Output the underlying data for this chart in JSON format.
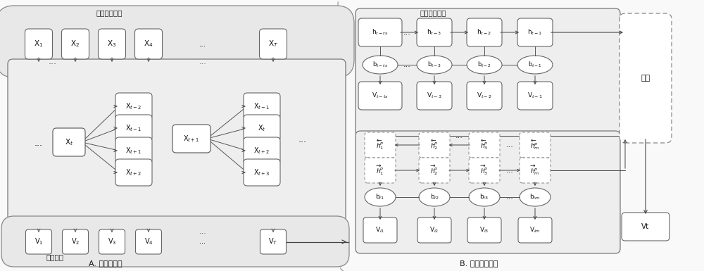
{
  "bg_color": "#ffffff",
  "panel_A_label": "A. 神经项嵌入",
  "panel_B_label": "B. 辨别行为学习",
  "seq_label": "相互作用序列",
  "session_label": "会话行为学习",
  "device_label": "设备向量",
  "predict_label": "预测",
  "seq_items_labels": [
    "X$_1$",
    "X$_2$",
    "X$_3$",
    "X$_4$",
    "...",
    "X$_T$"
  ],
  "v_items_A_labels": [
    "V$_1$",
    "V$_2$",
    "V$_3$",
    "V$_4$",
    "...",
    "V$_T$"
  ],
  "xt_label": "X$_t$",
  "xt1_label": "X$_{t+1}$",
  "ctx_left_labels": [
    "X$_{t-2}$",
    "X$_{t-1}$",
    "X$_{t+1}$",
    "X$_{t+2}$"
  ],
  "ctx_right_labels": [
    "X$_{t-1}$",
    "X$_t$",
    "X$_{t+2}$",
    "X$_{t+3}$"
  ],
  "h_session_labels": [
    "h$_{t-ts}$",
    "h$_{t-3}$",
    "h$_{t-2}$",
    "h$_{t-1}$"
  ],
  "b_session_labels": [
    "b$_{t-ts}$",
    "b$_{t-3}$",
    "b$_{t-2}$",
    "b$_{t-1}$"
  ],
  "v_session_labels": [
    "V$_{t-ts}$",
    "V$_{t-3}$",
    "V$_{t-2}$",
    "V$_{t-1}$"
  ],
  "h_upper_labels": [
    "$\\overleftarrow{h}_1^p$",
    "$\\overleftarrow{h}_2^p$",
    "$\\overleftarrow{h}_3^p$",
    "$\\overleftarrow{h}_m^p$"
  ],
  "h_lower_labels": [
    "$\\overrightarrow{h}_1^p$",
    "$\\overrightarrow{h}_2^p$",
    "$\\overrightarrow{h}_3^p$",
    "$\\overrightarrow{h}_m^p$"
  ],
  "b_discrim_labels": [
    "b$_{i1}$",
    "b$_{i2}$",
    "b$_{i3}$",
    "b$_{im}$"
  ],
  "v_discrim_labels": [
    "V$_{i1}$",
    "V$_{i2}$",
    "V$_{i3}$",
    "V$_{im}$"
  ],
  "vt_label": "Vt",
  "gray_bg": "#f0f0f0",
  "light_bg": "#f7f7f7",
  "pill_bg": "#e8e8e8",
  "box_fc": "#ffffff",
  "box_ec": "#666666",
  "dashed_ec": "#888888",
  "outer_ec": "#aaaaaa",
  "arrow_color": "#444444",
  "line_color": "#555555"
}
